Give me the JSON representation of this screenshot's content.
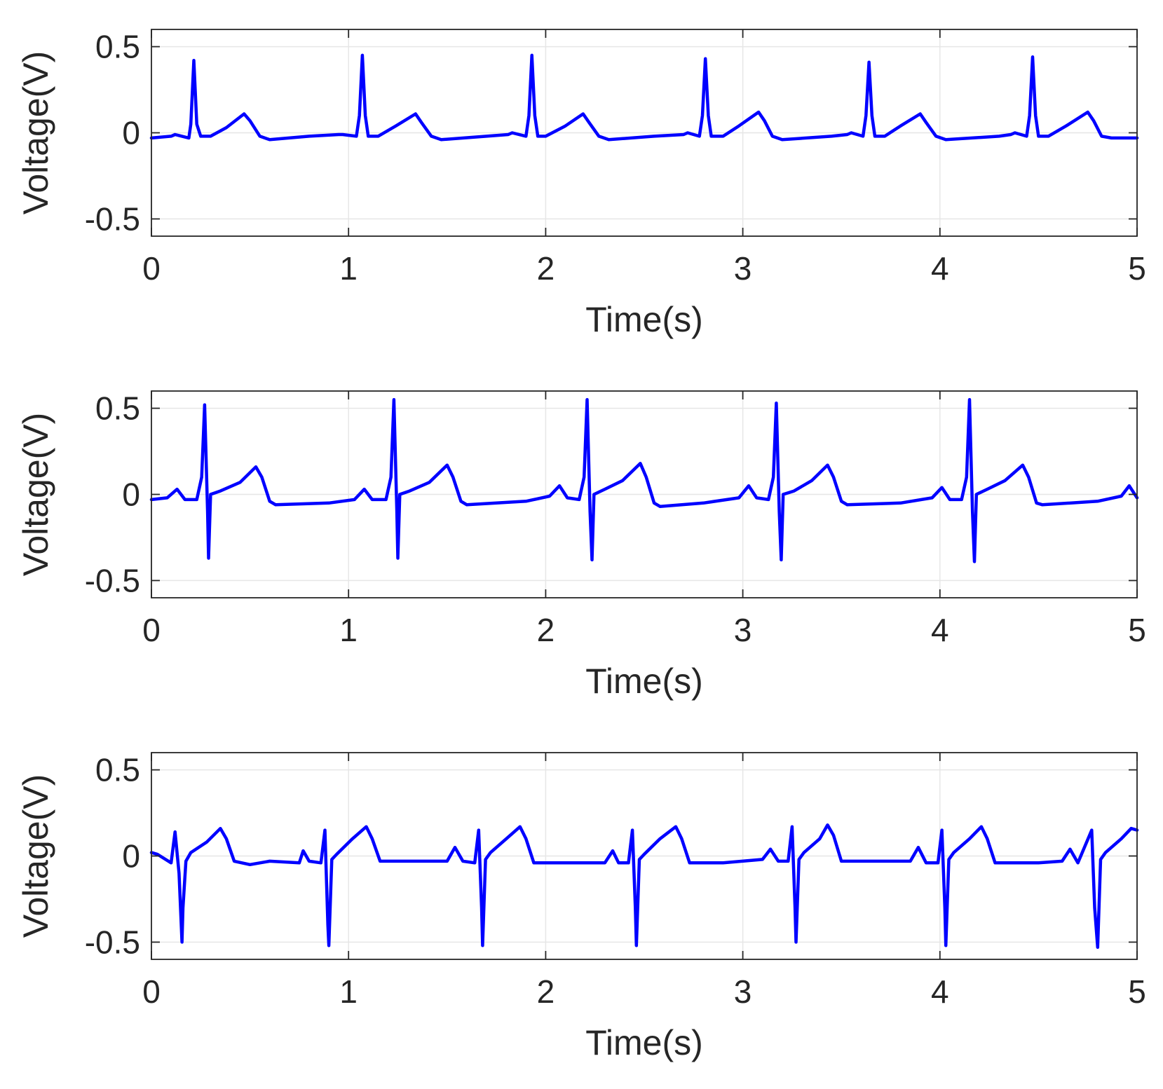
{
  "chart_data": [
    {
      "type": "line",
      "xlabel": "Time(s)",
      "ylabel": "Voltage(V)",
      "xlim": [
        0,
        5
      ],
      "ylim": [
        -0.6,
        0.6
      ],
      "xticks": [
        0,
        1,
        2,
        3,
        4,
        5
      ],
      "yticks": [
        -0.5,
        0,
        0.5
      ],
      "xtick_labels": [
        "0",
        "1",
        "2",
        "3",
        "4",
        "5"
      ],
      "ytick_labels": [
        "-0.5",
        "0",
        "0.5"
      ],
      "grid": true,
      "series": [
        {
          "color": "#0000ff",
          "x": [
            0,
            0.1,
            0.12,
            0.19,
            0.2,
            0.215,
            0.23,
            0.25,
            0.3,
            0.38,
            0.47,
            0.5,
            0.55,
            0.6,
            0.8,
            0.95,
            0.97,
            1.04,
            1.055,
            1.07,
            1.085,
            1.1,
            1.15,
            1.24,
            1.34,
            1.37,
            1.42,
            1.47,
            1.7,
            1.81,
            1.83,
            1.9,
            1.915,
            1.93,
            1.945,
            1.96,
            2.0,
            2.1,
            2.19,
            2.22,
            2.27,
            2.32,
            2.55,
            2.7,
            2.72,
            2.78,
            2.795,
            2.81,
            2.825,
            2.84,
            2.9,
            2.98,
            3.08,
            3.11,
            3.15,
            3.2,
            3.45,
            3.53,
            3.55,
            3.61,
            3.625,
            3.64,
            3.655,
            3.67,
            3.72,
            3.8,
            3.9,
            3.93,
            3.98,
            4.03,
            4.3,
            4.36,
            4.38,
            4.44,
            4.455,
            4.47,
            4.485,
            4.5,
            4.55,
            4.64,
            4.75,
            4.78,
            4.82,
            4.87,
            5.0
          ],
          "y": [
            -0.03,
            -0.02,
            -0.01,
            -0.03,
            0.05,
            0.42,
            0.05,
            -0.02,
            -0.02,
            0.03,
            0.11,
            0.07,
            -0.02,
            -0.04,
            -0.02,
            -0.01,
            -0.01,
            -0.02,
            0.1,
            0.45,
            0.1,
            -0.02,
            -0.02,
            0.04,
            0.11,
            0.06,
            -0.02,
            -0.04,
            -0.02,
            -0.01,
            0.0,
            -0.02,
            0.1,
            0.45,
            0.1,
            -0.02,
            -0.02,
            0.04,
            0.11,
            0.06,
            -0.02,
            -0.04,
            -0.02,
            -0.01,
            0.0,
            -0.02,
            0.1,
            0.43,
            0.1,
            -0.02,
            -0.02,
            0.04,
            0.12,
            0.07,
            -0.02,
            -0.04,
            -0.02,
            -0.01,
            0.0,
            -0.02,
            0.1,
            0.41,
            0.1,
            -0.02,
            -0.02,
            0.04,
            0.11,
            0.06,
            -0.02,
            -0.04,
            -0.02,
            -0.01,
            0.0,
            -0.02,
            0.1,
            0.44,
            0.1,
            -0.02,
            -0.02,
            0.04,
            0.12,
            0.07,
            -0.02,
            -0.03,
            -0.03
          ]
        }
      ]
    },
    {
      "type": "line",
      "xlabel": "Time(s)",
      "ylabel": "Voltage(V)",
      "xlim": [
        0,
        5
      ],
      "ylim": [
        -0.6,
        0.6
      ],
      "xticks": [
        0,
        1,
        2,
        3,
        4,
        5
      ],
      "yticks": [
        -0.5,
        0,
        0.5
      ],
      "xtick_labels": [
        "0",
        "1",
        "2",
        "3",
        "4",
        "5"
      ],
      "ytick_labels": [
        "-0.5",
        "0",
        "0.5"
      ],
      "grid": true,
      "series": [
        {
          "color": "#0000ff",
          "x": [
            0,
            0.08,
            0.13,
            0.17,
            0.23,
            0.255,
            0.27,
            0.285,
            0.29,
            0.3,
            0.35,
            0.45,
            0.53,
            0.56,
            0.6,
            0.63,
            0.9,
            1.03,
            1.08,
            1.12,
            1.19,
            1.215,
            1.23,
            1.245,
            1.25,
            1.26,
            1.31,
            1.41,
            1.5,
            1.53,
            1.57,
            1.6,
            1.9,
            2.02,
            2.07,
            2.11,
            2.17,
            2.195,
            2.21,
            2.225,
            2.235,
            2.245,
            2.3,
            2.39,
            2.48,
            2.51,
            2.55,
            2.58,
            2.8,
            2.98,
            3.03,
            3.07,
            3.13,
            3.155,
            3.17,
            3.185,
            3.195,
            3.205,
            3.26,
            3.35,
            3.43,
            3.46,
            3.5,
            3.53,
            3.8,
            3.96,
            4.01,
            4.05,
            4.11,
            4.135,
            4.15,
            4.165,
            4.175,
            4.185,
            4.24,
            4.33,
            4.42,
            4.45,
            4.49,
            4.52,
            4.8,
            4.92,
            4.96,
            5.0
          ],
          "y": [
            -0.03,
            -0.02,
            0.03,
            -0.03,
            -0.03,
            0.1,
            0.52,
            -0.1,
            -0.37,
            0.0,
            0.02,
            0.07,
            0.16,
            0.1,
            -0.04,
            -0.06,
            -0.05,
            -0.03,
            0.03,
            -0.03,
            -0.03,
            0.1,
            0.55,
            -0.1,
            -0.37,
            0.0,
            0.02,
            0.07,
            0.17,
            0.1,
            -0.04,
            -0.06,
            -0.04,
            -0.01,
            0.05,
            -0.02,
            -0.03,
            0.1,
            0.55,
            -0.1,
            -0.38,
            0.0,
            0.03,
            0.08,
            0.18,
            0.1,
            -0.05,
            -0.07,
            -0.05,
            -0.02,
            0.05,
            -0.02,
            -0.03,
            0.1,
            0.53,
            -0.1,
            -0.38,
            0.0,
            0.02,
            0.08,
            0.17,
            0.1,
            -0.04,
            -0.06,
            -0.05,
            -0.02,
            0.04,
            -0.03,
            -0.03,
            0.1,
            0.55,
            -0.1,
            -0.39,
            0.0,
            0.03,
            0.08,
            0.17,
            0.1,
            -0.05,
            -0.06,
            -0.04,
            -0.01,
            0.05,
            -0.02
          ]
        }
      ]
    },
    {
      "type": "line",
      "xlabel": "Time(s)",
      "ylabel": "Voltage(V)",
      "xlim": [
        0,
        5
      ],
      "ylim": [
        -0.6,
        0.6
      ],
      "xticks": [
        0,
        1,
        2,
        3,
        4,
        5
      ],
      "yticks": [
        -0.5,
        0,
        0.5
      ],
      "xtick_labels": [
        "0",
        "1",
        "2",
        "3",
        "4",
        "5"
      ],
      "ytick_labels": [
        "-0.5",
        "0",
        "0.5"
      ],
      "grid": true,
      "series": [
        {
          "color": "#0000ff",
          "x": [
            0,
            0.03,
            0.1,
            0.12,
            0.14,
            0.155,
            0.16,
            0.175,
            0.2,
            0.28,
            0.35,
            0.38,
            0.42,
            0.5,
            0.6,
            0.75,
            0.77,
            0.8,
            0.86,
            0.88,
            0.895,
            0.9,
            0.915,
            0.94,
            1.02,
            1.09,
            1.12,
            1.16,
            1.3,
            1.5,
            1.54,
            1.58,
            1.64,
            1.66,
            1.675,
            1.68,
            1.695,
            1.72,
            1.8,
            1.87,
            1.9,
            1.94,
            2.1,
            2.3,
            2.34,
            2.37,
            2.42,
            2.44,
            2.455,
            2.46,
            2.475,
            2.5,
            2.58,
            2.66,
            2.69,
            2.73,
            2.9,
            3.1,
            3.14,
            3.18,
            3.23,
            3.25,
            3.265,
            3.27,
            3.285,
            3.31,
            3.39,
            3.43,
            3.46,
            3.5,
            3.7,
            3.85,
            3.89,
            3.93,
            3.99,
            4.01,
            4.025,
            4.03,
            4.045,
            4.07,
            4.15,
            4.21,
            4.24,
            4.28,
            4.5,
            4.62,
            4.66,
            4.7,
            4.77,
            4.785,
            4.8,
            4.815,
            4.84,
            4.92,
            4.97,
            5.0
          ],
          "y": [
            0.02,
            0.01,
            -0.04,
            0.14,
            -0.1,
            -0.5,
            -0.3,
            -0.03,
            0.02,
            0.08,
            0.16,
            0.1,
            -0.03,
            -0.05,
            -0.03,
            -0.04,
            0.03,
            -0.03,
            -0.04,
            0.15,
            -0.4,
            -0.52,
            -0.02,
            0.01,
            0.1,
            0.17,
            0.1,
            -0.03,
            -0.03,
            -0.03,
            0.05,
            -0.03,
            -0.04,
            0.15,
            -0.3,
            -0.52,
            -0.02,
            0.02,
            0.1,
            0.17,
            0.1,
            -0.04,
            -0.04,
            -0.04,
            0.03,
            -0.04,
            -0.04,
            0.15,
            -0.3,
            -0.52,
            -0.02,
            0.01,
            0.1,
            0.17,
            0.1,
            -0.04,
            -0.04,
            -0.02,
            0.04,
            -0.03,
            -0.03,
            0.17,
            -0.3,
            -0.5,
            -0.02,
            0.02,
            0.1,
            0.18,
            0.12,
            -0.03,
            -0.03,
            -0.03,
            0.05,
            -0.04,
            -0.04,
            0.15,
            -0.3,
            -0.52,
            -0.02,
            0.02,
            0.1,
            0.17,
            0.1,
            -0.04,
            -0.04,
            -0.03,
            0.04,
            -0.04,
            0.15,
            -0.3,
            -0.53,
            -0.02,
            0.02,
            0.1,
            0.16,
            0.15
          ]
        }
      ]
    }
  ]
}
